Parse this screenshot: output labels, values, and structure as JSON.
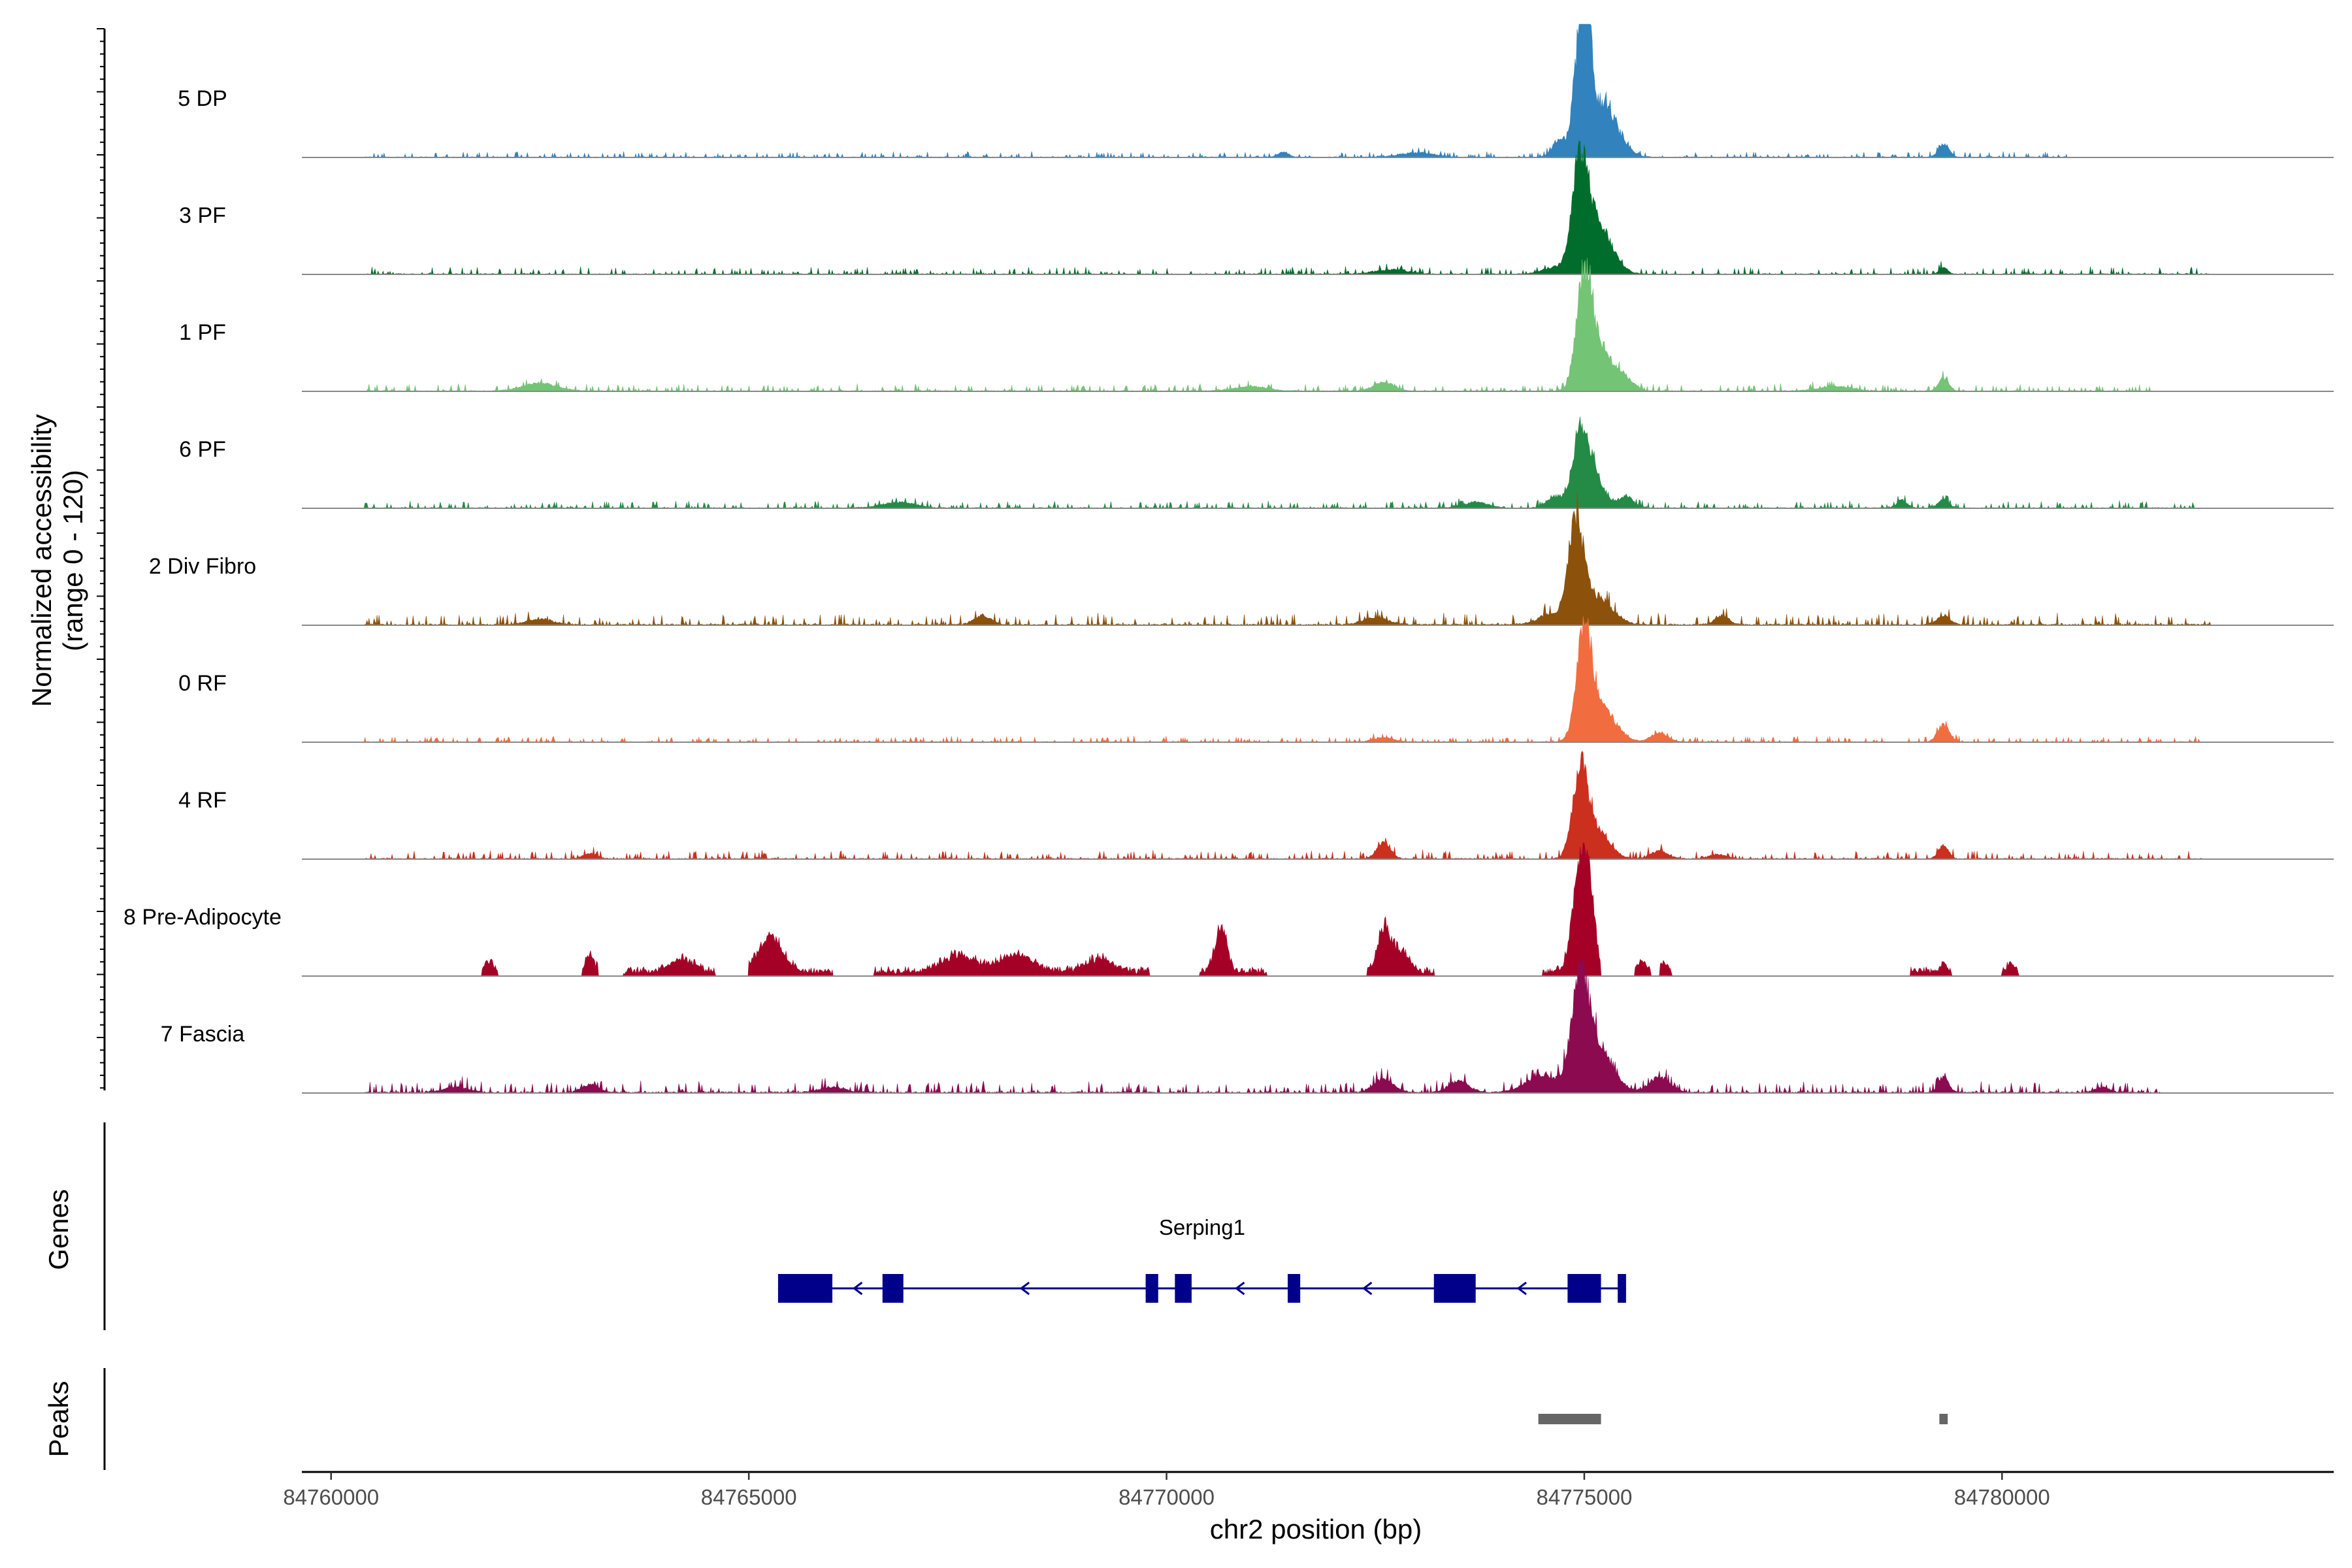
{
  "chart_data": {
    "type": "area",
    "title": "",
    "region": "chr2",
    "xlabel": "chr2 position (bp)",
    "ylabel_line1": "Normalized accessibility",
    "ylabel_line2": "(range 0 - 120)",
    "y_range": [
      0,
      120
    ],
    "xlim": [
      84759650,
      84783970
    ],
    "x_ticks": [
      84760000,
      84765000,
      84770000,
      84775000,
      84780000
    ],
    "x_tick_labels": [
      "84760000",
      "84765000",
      "84770000",
      "84775000",
      "84780000"
    ],
    "series": [
      {
        "name": "5 DP",
        "color": "#3182bd",
        "peaks": [
          [
            84774950,
            100,
            70
          ],
          [
            84775050,
            80,
            40
          ],
          [
            84775200,
            50,
            180
          ],
          [
            84774700,
            15,
            80
          ],
          [
            84779300,
            12,
            60
          ],
          [
            84773000,
            4,
            200
          ],
          [
            84771400,
            5,
            60
          ]
        ],
        "noise": 2.0,
        "extent": [
          84760400,
          84780800
        ]
      },
      {
        "name": "3 PF",
        "color": "#006d2c",
        "peaks": [
          [
            84774950,
            90,
            90
          ],
          [
            84775150,
            45,
            170
          ],
          [
            84774650,
            6,
            150
          ],
          [
            84772700,
            4,
            200
          ],
          [
            84779300,
            6,
            50
          ]
        ],
        "noise": 2.5,
        "extent": [
          84760400,
          84782500
        ]
      },
      {
        "name": "1 PF",
        "color": "#74c476",
        "peaks": [
          [
            84775000,
            95,
            90
          ],
          [
            84775200,
            35,
            160
          ],
          [
            84775500,
            8,
            100
          ],
          [
            84772600,
            8,
            120
          ],
          [
            84779300,
            12,
            60
          ],
          [
            84762500,
            7,
            200
          ],
          [
            84771000,
            4,
            200
          ],
          [
            84778000,
            4,
            200
          ]
        ],
        "noise": 2.5,
        "extent": [
          84760400,
          84781800
        ]
      },
      {
        "name": "6 PF",
        "color": "#238b45",
        "peaks": [
          [
            84774950,
            60,
            90
          ],
          [
            84775100,
            30,
            130
          ],
          [
            84774650,
            10,
            100
          ],
          [
            84775500,
            10,
            90
          ],
          [
            84779300,
            8,
            60
          ],
          [
            84778800,
            7,
            60
          ],
          [
            84766800,
            5,
            200
          ],
          [
            84773700,
            5,
            150
          ]
        ],
        "noise": 2.5,
        "extent": [
          84760400,
          84782300
        ]
      },
      {
        "name": "2 Div Fibro",
        "color": "#8c510a",
        "peaks": [
          [
            84774900,
            85,
            90
          ],
          [
            84775150,
            25,
            180
          ],
          [
            84774600,
            9,
            150
          ],
          [
            84776650,
            8,
            80
          ],
          [
            84779300,
            8,
            80
          ],
          [
            84767800,
            8,
            100
          ],
          [
            84762500,
            5,
            150
          ],
          [
            84772500,
            6,
            150
          ]
        ],
        "noise": 4.0,
        "extent": [
          84760400,
          84782500
        ]
      },
      {
        "name": "0 RF",
        "color": "#f16d3f",
        "peaks": [
          [
            84775000,
            90,
            90
          ],
          [
            84775200,
            30,
            170
          ],
          [
            84775900,
            8,
            100
          ],
          [
            84779300,
            15,
            70
          ],
          [
            84772600,
            4,
            120
          ]
        ],
        "noise": 2.0,
        "extent": [
          84760400,
          84782400
        ]
      },
      {
        "name": "4 RF",
        "color": "#cb2f1e",
        "peaks": [
          [
            84774950,
            75,
            90
          ],
          [
            84775150,
            25,
            150
          ],
          [
            84772600,
            15,
            80
          ],
          [
            84779300,
            12,
            60
          ],
          [
            84775900,
            7,
            100
          ],
          [
            84763100,
            5,
            80
          ],
          [
            84776600,
            4,
            100
          ]
        ],
        "noise": 3.0,
        "extent": [
          84760400,
          84782400
        ]
      },
      {
        "name": "8 Pre-Adipocyte",
        "color": "#a50026",
        "peaks": [
          [
            84774950,
            90,
            90
          ],
          [
            84775050,
            60,
            70
          ],
          [
            84770650,
            40,
            70
          ],
          [
            84772600,
            40,
            70
          ],
          [
            84765250,
            30,
            150
          ],
          [
            84772800,
            20,
            100
          ],
          [
            84767500,
            15,
            200
          ],
          [
            84768200,
            15,
            200
          ],
          [
            84769200,
            12,
            150
          ],
          [
            84764200,
            12,
            150
          ],
          [
            84763100,
            15,
            50
          ],
          [
            84761900,
            10,
            50
          ],
          [
            84775700,
            8,
            50
          ],
          [
            84775950,
            8,
            40
          ],
          [
            84779300,
            6,
            50
          ],
          [
            84780100,
            7,
            40
          ]
        ],
        "noise": 6.0,
        "segments": [
          [
            84761800,
            84762000
          ],
          [
            84763000,
            84763200
          ],
          [
            84763500,
            84764600
          ],
          [
            84765000,
            84766000
          ],
          [
            84766500,
            84769800
          ],
          [
            84770400,
            84771200
          ],
          [
            84772400,
            84773200
          ],
          [
            84774500,
            84775200
          ],
          [
            84775600,
            84775800
          ],
          [
            84775900,
            84776050
          ],
          [
            84778900,
            84779400
          ],
          [
            84780000,
            84780200
          ]
        ]
      },
      {
        "name": "7 Fascia",
        "color": "#8b0a50",
        "peaks": [
          [
            84774950,
            90,
            100
          ],
          [
            84775150,
            40,
            180
          ],
          [
            84774500,
            15,
            200
          ],
          [
            84772600,
            12,
            120
          ],
          [
            84773500,
            10,
            120
          ],
          [
            84775900,
            14,
            120
          ],
          [
            84779300,
            14,
            60
          ],
          [
            84763100,
            7,
            100
          ],
          [
            84761500,
            5,
            150
          ],
          [
            84766000,
            5,
            150
          ],
          [
            84781200,
            5,
            80
          ]
        ],
        "noise": 4.0,
        "extent": [
          84760400,
          84781900
        ]
      }
    ],
    "gene": {
      "name": "Serping1",
      "strand": "-",
      "start": 84765350,
      "end": 84775500,
      "exons": [
        [
          84765350,
          84766000
        ],
        [
          84766600,
          84766850
        ],
        [
          84769750,
          84769900
        ],
        [
          84770100,
          84770300
        ],
        [
          84771450,
          84771600
        ],
        [
          84773200,
          84773700
        ],
        [
          84774800,
          84775200
        ],
        [
          84775400,
          84775500
        ]
      ],
      "color": "#00008b"
    },
    "peak_regions": [
      [
        84774450,
        84775200
      ],
      [
        84779250,
        84779350
      ]
    ],
    "peak_color": "#666666",
    "panel_labels": {
      "genes": "Genes",
      "peaks": "Peaks"
    }
  }
}
